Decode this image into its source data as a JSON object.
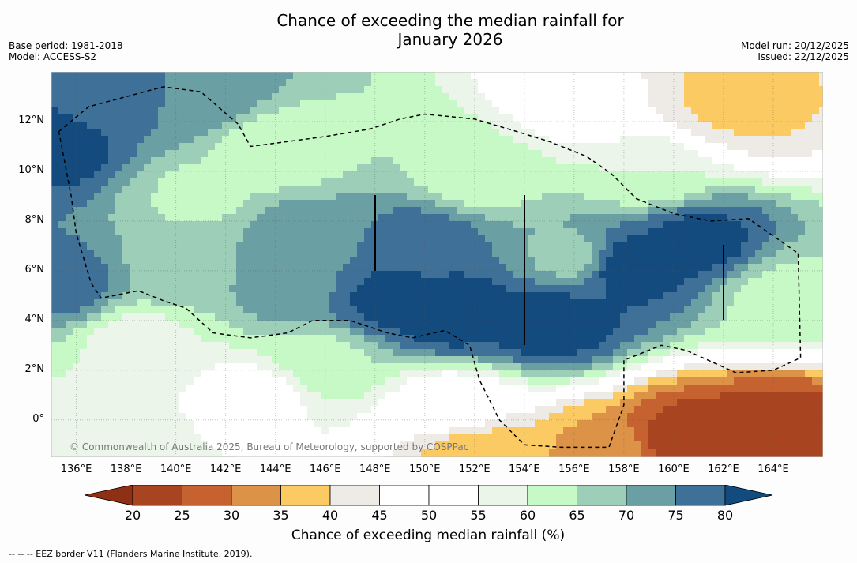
{
  "title": {
    "line1": "Chance of exceeding the median rainfall for",
    "line2": "January 2026"
  },
  "meta_left": {
    "base_period": "Base period: 1981-2018",
    "model": "Model: ACCESS-S2"
  },
  "meta_right": {
    "model_run": "Model run: 20/12/2025",
    "issued": "Issued: 22/12/2025"
  },
  "map": {
    "lon_range": [
      135,
      166
    ],
    "lat_range": [
      -1.5,
      14
    ],
    "lat_labels": [
      "12°N",
      "10°N",
      "8°N",
      "6°N",
      "4°N",
      "2°N",
      "0°"
    ],
    "lat_values": [
      12,
      10,
      8,
      6,
      4,
      2,
      0
    ],
    "lon_labels": [
      "136°E",
      "138°E",
      "140°E",
      "142°E",
      "144°E",
      "146°E",
      "148°E",
      "150°E",
      "152°E",
      "154°E",
      "156°E",
      "158°E",
      "160°E",
      "162°E",
      "164°E"
    ],
    "lon_values": [
      136,
      138,
      140,
      142,
      144,
      146,
      148,
      150,
      152,
      154,
      156,
      158,
      160,
      162,
      164
    ],
    "copyright": "© Commonwealth of Australia 2025, Bureau of Meteorology, supported by COSPPac",
    "eez_border": [
      [
        135.3,
        11.6
      ],
      [
        136.5,
        12.6
      ],
      [
        138,
        13
      ],
      [
        139.5,
        13.4
      ],
      [
        141,
        13.2
      ],
      [
        142.5,
        11.9
      ],
      [
        143,
        11
      ],
      [
        146,
        11.4
      ],
      [
        147.8,
        11.7
      ],
      [
        149,
        12.1
      ],
      [
        150,
        12.3
      ],
      [
        152,
        12.1
      ],
      [
        153.7,
        11.6
      ],
      [
        155,
        11.2
      ],
      [
        156.5,
        10.6
      ],
      [
        157.5,
        9.9
      ],
      [
        158.5,
        8.9
      ],
      [
        160,
        8.3
      ],
      [
        161.5,
        8
      ],
      [
        163,
        8.1
      ],
      [
        165,
        6.7
      ],
      [
        165.1,
        2.5
      ],
      [
        164,
        2
      ],
      [
        162.5,
        1.9
      ],
      [
        160.5,
        2.8
      ],
      [
        159.5,
        3
      ],
      [
        158,
        2.4
      ],
      [
        158,
        0.6
      ],
      [
        157.4,
        -1.1
      ],
      [
        155.5,
        -1.1
      ],
      [
        154,
        -1
      ],
      [
        153,
        0
      ],
      [
        152.2,
        1.6
      ],
      [
        151.8,
        3
      ],
      [
        150.8,
        3.6
      ],
      [
        149.5,
        3.3
      ],
      [
        148.5,
        3.5
      ],
      [
        147,
        4
      ],
      [
        145.5,
        4
      ],
      [
        144.5,
        3.5
      ],
      [
        143,
        3.3
      ],
      [
        141.5,
        3.5
      ],
      [
        140.4,
        4.5
      ],
      [
        139.5,
        4.8
      ],
      [
        138.5,
        5.2
      ],
      [
        137,
        4.9
      ],
      [
        136.6,
        5.5
      ],
      [
        136,
        7.5
      ],
      [
        135.8,
        9
      ],
      [
        135.3,
        11.6
      ]
    ],
    "fields": {
      "blobs": [
        {
          "lon": 164,
          "lat": -0.5,
          "val": 21
        },
        {
          "lon": 160.5,
          "lat": -0.8,
          "val": 22
        },
        {
          "lon": 157,
          "lat": -1.3,
          "val": 34
        },
        {
          "lon": 152,
          "lat": -1.3,
          "val": 37
        },
        {
          "lon": 162,
          "lat": 13,
          "val": 39
        },
        {
          "lon": 163,
          "lat": 12.6,
          "val": 39
        },
        {
          "lon": 151,
          "lat": 0.5,
          "val": 50
        },
        {
          "lon": 143,
          "lat": 1,
          "val": 52
        },
        {
          "lon": 157,
          "lat": 13,
          "val": 46
        },
        {
          "lon": 138,
          "lat": 13,
          "val": 76
        },
        {
          "lon": 141,
          "lat": 13,
          "val": 74
        },
        {
          "lon": 135.3,
          "lat": 11,
          "val": 82
        },
        {
          "lon": 135.5,
          "lat": 5.5,
          "val": 78
        },
        {
          "lon": 144,
          "lat": 10.8,
          "val": 60
        },
        {
          "lon": 152,
          "lat": 9.8,
          "val": 62
        },
        {
          "lon": 159,
          "lat": 10,
          "val": 60
        },
        {
          "lon": 156,
          "lat": 6.5,
          "val": 68
        },
        {
          "lon": 150,
          "lat": 7.2,
          "val": 78
        },
        {
          "lon": 158,
          "lat": 6.2,
          "val": 84
        },
        {
          "lon": 161,
          "lat": 7.2,
          "val": 82
        },
        {
          "lon": 148.5,
          "lat": 4.8,
          "val": 82
        },
        {
          "lon": 151,
          "lat": 4.3,
          "val": 84
        },
        {
          "lon": 155,
          "lat": 4,
          "val": 84
        },
        {
          "lon": 145,
          "lat": 5.5,
          "val": 74
        },
        {
          "lon": 140,
          "lat": 6,
          "val": 68
        },
        {
          "lon": 145,
          "lat": 7.6,
          "val": 72
        },
        {
          "lon": 141,
          "lat": 9,
          "val": 64
        },
        {
          "lon": 164.5,
          "lat": 5,
          "val": 63
        },
        {
          "lon": 138.5,
          "lat": 3.2,
          "val": 58
        },
        {
          "lon": 146,
          "lat": 2.5,
          "val": 64
        },
        {
          "lon": 137,
          "lat": -0.5,
          "val": 58
        }
      ]
    }
  },
  "colorbar": {
    "ticks": [
      "20",
      "25",
      "30",
      "35",
      "40",
      "45",
      "50",
      "55",
      "60",
      "65",
      "70",
      "75",
      "80"
    ],
    "colors": [
      "#8e3015",
      "#a84520",
      "#c56230",
      "#dd9347",
      "#fbca63",
      "#eeebe6",
      "#ffffff",
      "#ffffff",
      "#ebf5ea",
      "#c6f9c5",
      "#9dcfb8",
      "#6a9fa3",
      "#3f7098",
      "#144b7e"
    ],
    "label": "Chance of exceeding median rainfall (%)"
  },
  "footer": "--  --  -- EEZ border V11 (Flanders Marine Institute, 2019)."
}
